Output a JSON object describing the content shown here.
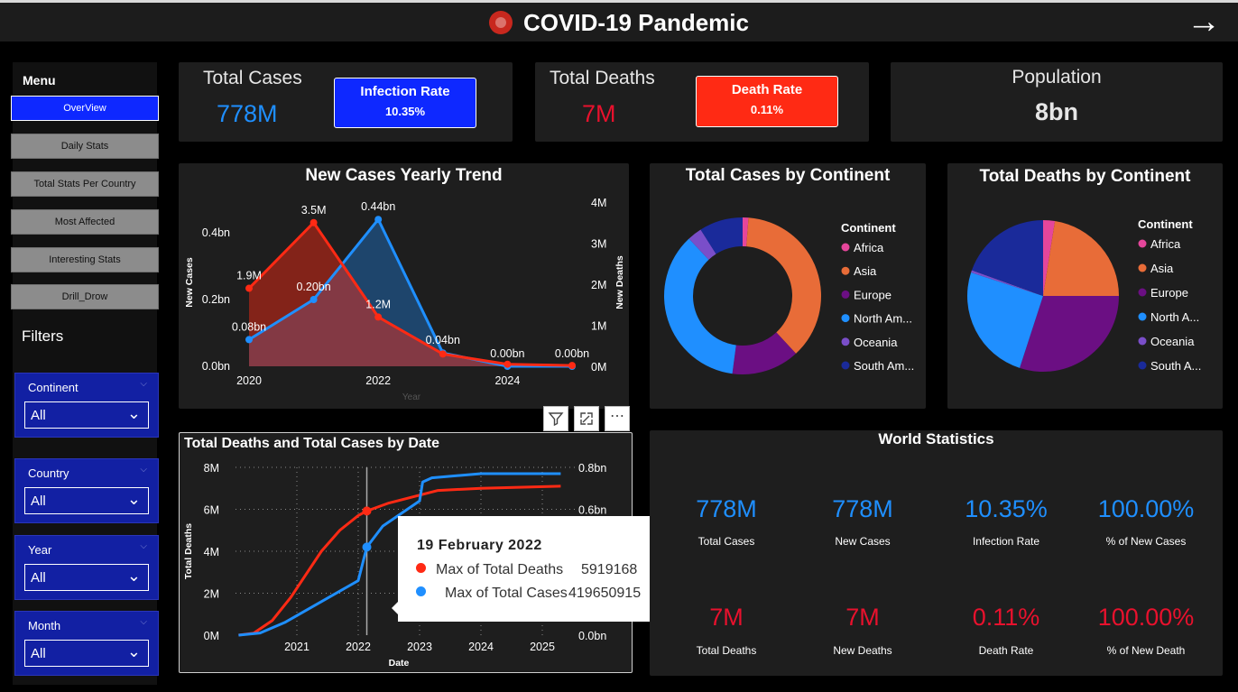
{
  "header": {
    "title": "COVID-19 Pandemic",
    "next_icon": "arrow-right-icon",
    "logo_icon": "virus-icon"
  },
  "menu": {
    "label": "Menu",
    "items": [
      {
        "label": "OverView",
        "active": true
      },
      {
        "label": "Daily Stats"
      },
      {
        "label": "Total Stats Per Country"
      },
      {
        "label": "Most Affected"
      },
      {
        "label": "Interesting Stats"
      },
      {
        "label": "Drill_Drow"
      }
    ]
  },
  "filters": {
    "label": "Filters",
    "items": [
      {
        "label": "Continent",
        "value": "All"
      },
      {
        "label": "Country",
        "value": "All"
      },
      {
        "label": "Year",
        "value": "All"
      },
      {
        "label": "Month",
        "value": "All"
      }
    ]
  },
  "kpis": {
    "total_cases": {
      "label": "Total Cases",
      "value": "778M",
      "color": "#1f8fff"
    },
    "infection_rate": {
      "label": "Infection Rate",
      "value": "10.35%",
      "color": "#0e28ff"
    },
    "total_deaths": {
      "label": "Total Deaths",
      "value": "7M",
      "color": "#e8112d"
    },
    "death_rate": {
      "label": "Death Rate",
      "value": "0.11%",
      "color": "#ff2a14"
    },
    "population": {
      "label": "Population",
      "value": "8bn"
    }
  },
  "visual_header_icons": [
    "filter-icon",
    "focus-mode-icon",
    "more-options-icon"
  ],
  "chart_data": [
    {
      "type": "area",
      "title": "New Cases Yearly Trend",
      "xlabel": "Year",
      "ylabel": "New Cases",
      "y2label": "New Deaths",
      "x": [
        2020,
        2021,
        2022,
        2023,
        2024,
        2025
      ],
      "x_ticks": [
        "2020",
        "2022",
        "2024"
      ],
      "y_ticks": [
        "0.0bn",
        "0.2bn",
        "0.4bn"
      ],
      "y2_ticks": [
        "0M",
        "1M",
        "2M",
        "3M",
        "4M"
      ],
      "ylim": [
        0,
        0.5
      ],
      "y2lim": [
        0,
        4
      ],
      "series": [
        {
          "name": "New Cases",
          "color": "#1f8fff",
          "axis": "left",
          "values": [
            0.08,
            0.2,
            0.44,
            0.04,
            0.0,
            0.0
          ],
          "labels": [
            "0.08bn",
            "0.20bn",
            "0.44bn",
            "0.04bn",
            "0.00bn",
            "0.00bn"
          ]
        },
        {
          "name": "New Deaths",
          "color": "#ff2a14",
          "axis": "right",
          "values": [
            1.9,
            3.5,
            1.2,
            0.3,
            0.05,
            0.02
          ],
          "labels": [
            "1.9M",
            "3.5M",
            "1.2M",
            "",
            "",
            ""
          ]
        }
      ]
    },
    {
      "type": "pie",
      "title": "Total Cases by Continent",
      "donut": true,
      "legend_title": "Continent",
      "legend_position": "right",
      "slices": [
        {
          "label": "Africa",
          "value": 1.2,
          "color": "#e5469b"
        },
        {
          "label": "Asia",
          "value": 37,
          "color": "#e86c38"
        },
        {
          "label": "Europe",
          "value": 14,
          "color": "#6b0f83"
        },
        {
          "label": "North Am...",
          "value": 36,
          "color": "#1f8fff"
        },
        {
          "label": "Oceania",
          "value": 3,
          "color": "#7a4ec9"
        },
        {
          "label": "South Am...",
          "value": 9,
          "color": "#1a2a9a"
        }
      ]
    },
    {
      "type": "pie",
      "title": "Total Deaths by Continent",
      "donut": false,
      "legend_title": "Continent",
      "legend_position": "right",
      "slices": [
        {
          "label": "Africa",
          "value": 2.5,
          "color": "#e5469b"
        },
        {
          "label": "Asia",
          "value": 22.5,
          "color": "#e86c38"
        },
        {
          "label": "Europe",
          "value": 30,
          "color": "#6b0f83"
        },
        {
          "label": "North A...",
          "value": 25,
          "color": "#1f8fff"
        },
        {
          "label": "Oceania",
          "value": 0.5,
          "color": "#7a4ec9"
        },
        {
          "label": "South A...",
          "value": 19.5,
          "color": "#1a2a9a"
        }
      ]
    },
    {
      "type": "line",
      "title": "Total Deaths and Total Cases by Date",
      "xlabel": "Date",
      "ylabel": "Total Deaths",
      "x_ticks": [
        "2021",
        "2022",
        "2023",
        "2024",
        "2025"
      ],
      "y_ticks": [
        "0M",
        "2M",
        "4M",
        "6M",
        "8M"
      ],
      "y2_ticks": [
        "0.0bn",
        "0.2bn",
        "0.4bn",
        "0.6bn",
        "0.8bn"
      ],
      "xlim": [
        2020.0,
        2025.5
      ],
      "ylim": [
        0,
        8
      ],
      "y2lim": [
        0,
        0.8
      ],
      "grid": true,
      "series": [
        {
          "name": "Max of Total Deaths",
          "color": "#ff2a14",
          "axis": "left",
          "x": [
            2020.05,
            2020.3,
            2020.6,
            2020.9,
            2021.15,
            2021.4,
            2021.7,
            2022.0,
            2022.14,
            2022.5,
            2022.9,
            2023.3,
            2024.0,
            2025.3
          ],
          "y": [
            0,
            0.1,
            0.7,
            1.8,
            2.9,
            4.0,
            5.0,
            5.7,
            5.92,
            6.3,
            6.6,
            6.9,
            7.0,
            7.1
          ]
        },
        {
          "name": "Max of Total Cases",
          "color": "#1f8fff",
          "axis": "right",
          "x": [
            2020.05,
            2020.4,
            2020.8,
            2021.1,
            2021.4,
            2021.7,
            2022.0,
            2022.14,
            2022.4,
            2022.8,
            2023.0,
            2023.05,
            2023.2,
            2024.0,
            2025.3
          ],
          "y": [
            0,
            0.01,
            0.06,
            0.11,
            0.16,
            0.21,
            0.26,
            0.42,
            0.52,
            0.6,
            0.64,
            0.73,
            0.75,
            0.77,
            0.77
          ]
        }
      ],
      "tooltip": {
        "date": "19 February 2022",
        "rows": [
          {
            "name": "Max of Total Deaths",
            "value": "5919168"
          },
          {
            "name": "Max of Total Cases",
            "value": "419650915"
          }
        ]
      },
      "cursor_x": 2022.14
    }
  ],
  "world_stats": {
    "title": "World Statistics",
    "items": [
      {
        "value": "778M",
        "label": "Total Cases",
        "color": "#1f8fff"
      },
      {
        "value": "778M",
        "label": "New Cases",
        "color": "#1f8fff"
      },
      {
        "value": "10.35%",
        "label": "Infection Rate",
        "color": "#1f8fff"
      },
      {
        "value": "100.00%",
        "label": "% of New Cases",
        "color": "#1f8fff"
      },
      {
        "value": "7M",
        "label": "Total Deaths",
        "color": "#e8112d"
      },
      {
        "value": "7M",
        "label": "New Deaths",
        "color": "#e8112d"
      },
      {
        "value": "0.11%",
        "label": "Death Rate",
        "color": "#e8112d"
      },
      {
        "value": "100.00%",
        "label": "% of New Death",
        "color": "#e8112d"
      }
    ]
  }
}
